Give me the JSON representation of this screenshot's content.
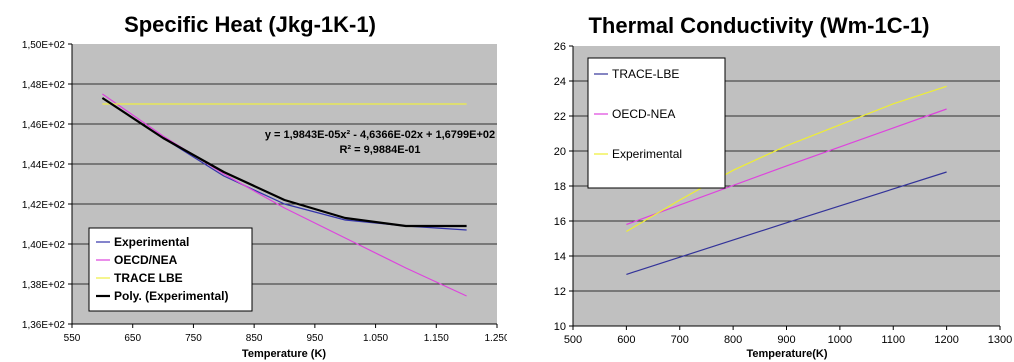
{
  "chart_data": [
    {
      "type": "line",
      "title": "Specific Heat (Jkg-1K-1)",
      "xlabel": "Temperature (K)",
      "ylabel": "",
      "xlim": [
        550,
        1250
      ],
      "ylim": [
        136,
        150
      ],
      "xticks": [
        550,
        650,
        750,
        850,
        950,
        1050,
        1150,
        1250
      ],
      "xtick_labels": [
        "550",
        "650",
        "750",
        "850",
        "950",
        "1.050",
        "1.150",
        "1.250"
      ],
      "yticks": [
        136,
        138,
        140,
        142,
        144,
        146,
        148,
        150
      ],
      "ytick_labels": [
        "1,36E+02",
        "1,38E+02",
        "1,40E+02",
        "1,42E+02",
        "1,44E+02",
        "1,46E+02",
        "1,48E+02",
        "1,50E+02"
      ],
      "grid": "horizontal",
      "legend_position": "bottom-left",
      "annotation": {
        "line1": "y = 1,9843E-05x² - 4,6366E-02x + 1,6799E+02",
        "line2": "R² = 9,9884E-01"
      },
      "series": [
        {
          "name": "Experimental",
          "color": "#3333aa",
          "x": [
            600,
            700,
            800,
            900,
            1000,
            1100,
            1200
          ],
          "y": [
            147.3,
            145.3,
            143.4,
            142.0,
            141.2,
            140.9,
            140.7
          ]
        },
        {
          "name": "OECD/NEA",
          "color": "#dd44dd",
          "x": [
            600,
            700,
            800,
            900,
            1000,
            1100,
            1200
          ],
          "y": [
            147.5,
            145.4,
            143.5,
            141.8,
            140.3,
            138.8,
            137.4
          ]
        },
        {
          "name": "TRACE LBE",
          "color": "#eeee44",
          "x": [
            600,
            1200
          ],
          "y": [
            147.0,
            147.0
          ]
        },
        {
          "name": "Poly. (Experimental)",
          "color": "#000000",
          "x": [
            600,
            700,
            800,
            900,
            1000,
            1100,
            1200
          ],
          "y": [
            147.3,
            145.3,
            143.6,
            142.2,
            141.3,
            140.9,
            140.9
          ]
        }
      ]
    },
    {
      "type": "line",
      "title": "Thermal Conductivity (Wm-1C-1)",
      "xlabel": "Temperature(K)",
      "ylabel": "",
      "xlim": [
        500,
        1300
      ],
      "ylim": [
        10,
        26
      ],
      "xticks": [
        500,
        600,
        700,
        800,
        900,
        1000,
        1100,
        1200,
        1300
      ],
      "xtick_labels": [
        "500",
        "600",
        "700",
        "800",
        "900",
        "1000",
        "1100",
        "1200",
        "1300"
      ],
      "yticks": [
        10,
        12,
        14,
        16,
        18,
        20,
        22,
        24,
        26
      ],
      "ytick_labels": [
        "10",
        "12",
        "14",
        "16",
        "18",
        "20",
        "22",
        "24",
        "26"
      ],
      "grid": "horizontal",
      "legend_position": "top-left",
      "series": [
        {
          "name": "TRACE-LBE",
          "color": "#333399",
          "x": [
            600,
            900,
            1200
          ],
          "y": [
            12.95,
            15.9,
            18.8
          ]
        },
        {
          "name": "OECD-NEA",
          "color": "#dd44dd",
          "x": [
            600,
            900,
            1200
          ],
          "y": [
            15.8,
            19.15,
            22.4
          ]
        },
        {
          "name": "Experimental",
          "color": "#eeee33",
          "x": [
            600,
            700,
            800,
            900,
            1000,
            1100,
            1200
          ],
          "y": [
            15.4,
            17.2,
            18.9,
            20.3,
            21.5,
            22.7,
            23.7
          ]
        }
      ]
    }
  ]
}
